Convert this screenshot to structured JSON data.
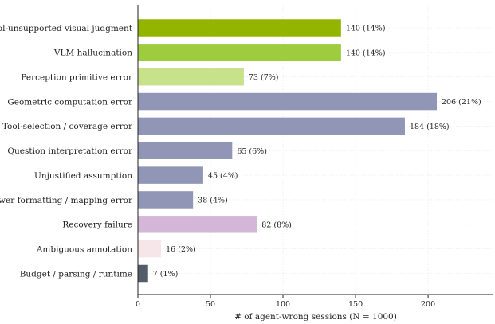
{
  "chart_data": {
    "type": "bar",
    "orientation": "horizontal",
    "xlabel": "# of agent-wrong sessions  (N = 1000)",
    "xlim": [
      0,
      245
    ],
    "xticks": [
      0,
      50,
      100,
      150,
      200
    ],
    "grid": true,
    "categories": [
      "Tool-unsupported visual judgment",
      "VLM hallucination",
      "Perception primitive error",
      "Geometric computation error",
      "Tool-selection / coverage error",
      "Question interpretation error",
      "Unjustified assumption",
      "Answer formatting / mapping error",
      "Recovery failure",
      "Ambiguous annotation",
      "Budget / parsing / runtime"
    ],
    "values": [
      140,
      140,
      73,
      206,
      184,
      65,
      45,
      38,
      82,
      16,
      7
    ],
    "value_labels": [
      "140  (14%)",
      "140  (14%)",
      "73  (7%)",
      "206  (21%)",
      "184  (18%)",
      "65  (6%)",
      "45  (4%)",
      "38  (4%)",
      "82  (8%)",
      "16  (2%)",
      "7  (1%)"
    ],
    "colors": [
      "#93b500",
      "#9dcc3f",
      "#c8e28c",
      "#9196b6",
      "#9196b6",
      "#9196b6",
      "#9196b6",
      "#9196b6",
      "#d4b6d9",
      "#f6e6ea",
      "#535e6a"
    ]
  }
}
